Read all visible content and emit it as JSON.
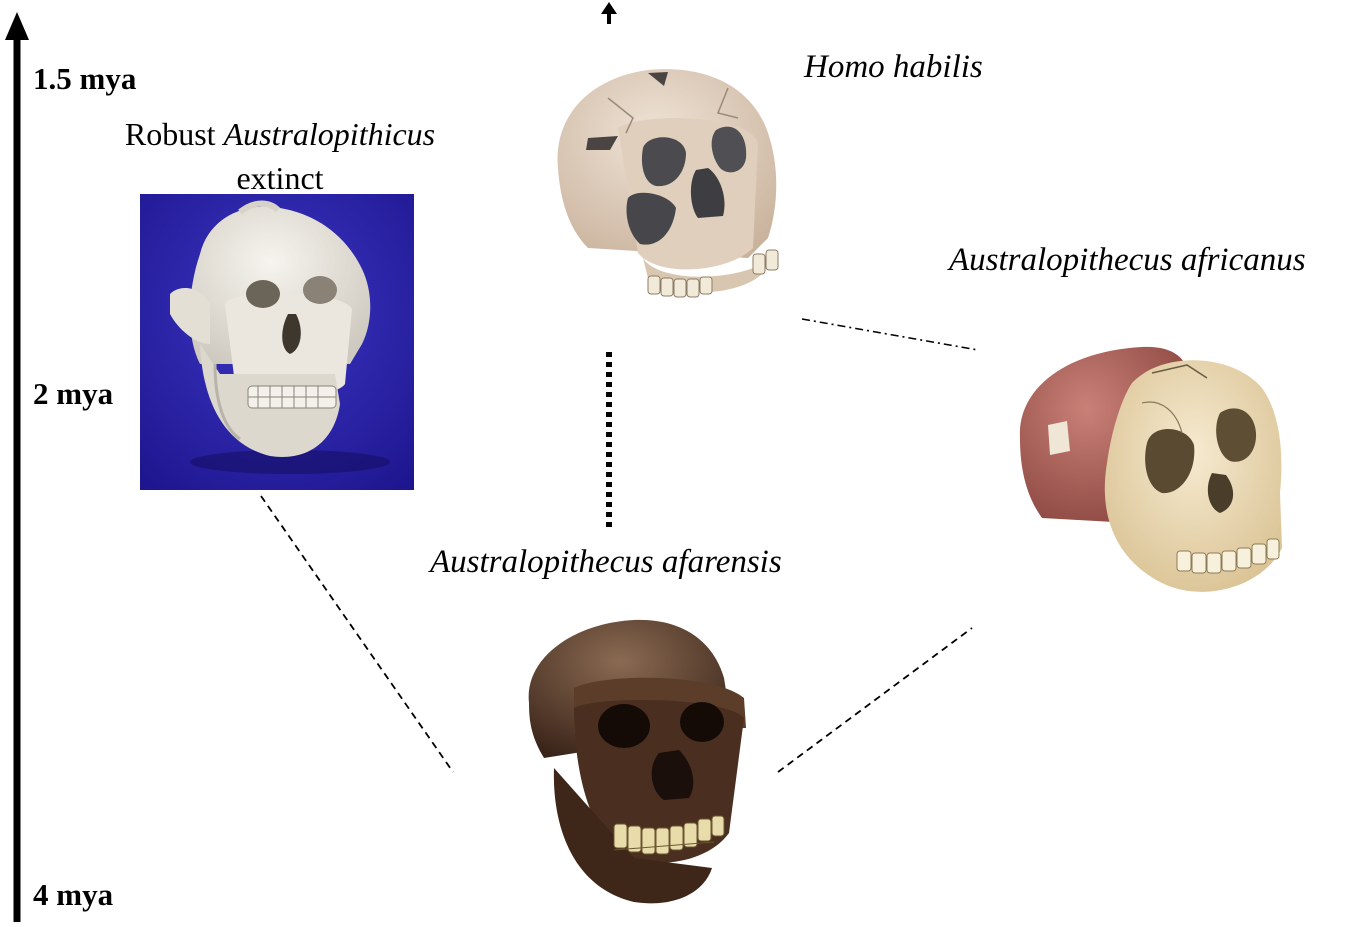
{
  "timeline": {
    "labels": {
      "top": "1.5 mya",
      "mid": "2 mya",
      "bottom": "4 mya"
    }
  },
  "species": {
    "homo_habilis": "Homo habilis",
    "africanus": "Australopithecus africanus",
    "afarensis": "Australopithecus afarensis",
    "robust": {
      "prefix": "Robust",
      "genus": "Australopithicus",
      "status": "extinct"
    }
  },
  "colors": {
    "robust_photo_background": "#2b22a8",
    "robust_skull": "#e9e6dd",
    "habilis_skull": "#d9c6b3",
    "africanus_cranium": "#b0635a",
    "africanus_face": "#eddcb6",
    "afarensis_skull": "#5a3a28"
  }
}
